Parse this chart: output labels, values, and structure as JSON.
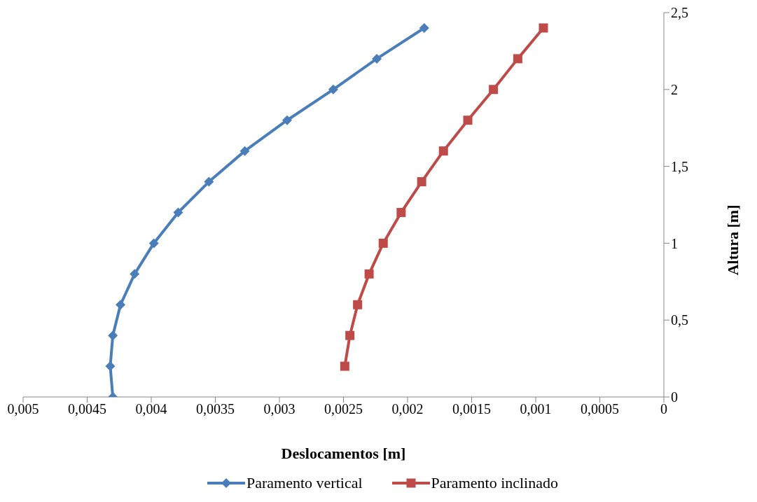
{
  "chart_data": {
    "type": "line",
    "xlabel": "Deslocamentos [m]",
    "ylabel": "Altura [m]",
    "xlim": [
      0.005,
      0
    ],
    "xticks": [
      {
        "value": 0.005,
        "label": "0,005"
      },
      {
        "value": 0.0045,
        "label": "0,0045"
      },
      {
        "value": 0.004,
        "label": "0,004"
      },
      {
        "value": 0.0035,
        "label": "0,0035"
      },
      {
        "value": 0.003,
        "label": "0,003"
      },
      {
        "value": 0.0025,
        "label": "0,0025"
      },
      {
        "value": 0.002,
        "label": "0,002"
      },
      {
        "value": 0.0015,
        "label": "0,0015"
      },
      {
        "value": 0.001,
        "label": "0,001"
      },
      {
        "value": 0.0005,
        "label": "0,0005"
      },
      0
    ],
    "ylim": [
      0,
      2.5
    ],
    "yticks": [
      0,
      {
        "value": 0.5,
        "label": "0,5"
      },
      1,
      {
        "value": 1.5,
        "label": "1,5"
      },
      2,
      {
        "value": 2.5,
        "label": "2,5"
      }
    ],
    "grid": false,
    "legend": "bottom",
    "line_style": "solid",
    "series": [
      {
        "name": "Paramento vertical",
        "color": "#4a7ebb",
        "marker": "diamond",
        "x": [
          0.0043,
          0.00432,
          0.0043,
          0.00424,
          0.00413,
          0.00398,
          0.00379,
          0.00355,
          0.00327,
          0.00294,
          0.00258,
          0.00224,
          0.00187
        ],
        "values": [
          0,
          0.2,
          0.4,
          0.6,
          0.8,
          1,
          1.2,
          1.4,
          1.6,
          1.8,
          2,
          2.2,
          2.4
        ]
      },
      {
        "name": "Paramento inclinado",
        "color": "#be4b48",
        "marker": "square",
        "x": [
          0.00249,
          0.00245,
          0.00239,
          0.0023,
          0.00219,
          0.00205,
          0.00189,
          0.00172,
          0.00153,
          0.00133,
          0.00114,
          0.00094
        ],
        "values": [
          0.2,
          0.4,
          0.6,
          0.8,
          1,
          1.2,
          1.4,
          1.6,
          1.8,
          2,
          2.2,
          2.4
        ]
      }
    ]
  }
}
